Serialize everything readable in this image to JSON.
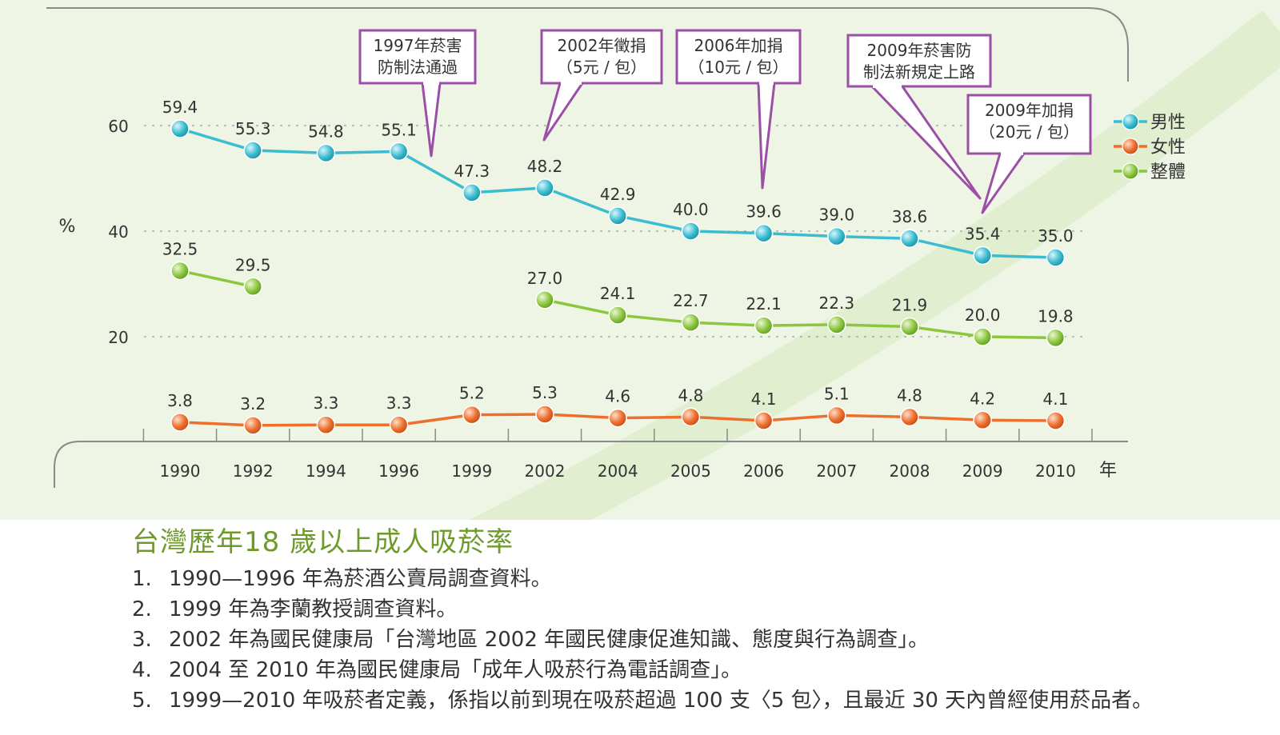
{
  "colors": {
    "panel_bg": "#eef5e4",
    "male": "#3bbcd0",
    "female": "#ee6e2e",
    "overall": "#8cc63f",
    "annotation_border": "#9b4fa6",
    "title": "#6d9a2a",
    "text": "#333333"
  },
  "chart_data": {
    "type": "line",
    "title": "台灣歷年18 歲以上成人吸菸率",
    "ylabel": "%",
    "xlabel": "年",
    "categories": [
      "1990",
      "1992",
      "1994",
      "1996",
      "1999",
      "2002",
      "2004",
      "2005",
      "2006",
      "2007",
      "2008",
      "2009",
      "2010"
    ],
    "yticks": [
      20,
      40,
      60
    ],
    "ylim": [
      0,
      66
    ],
    "grid": "horizontal dotted",
    "legend_position": "right",
    "series": [
      {
        "name": "男性",
        "key": "male",
        "values": [
          59.4,
          55.3,
          54.8,
          55.1,
          47.3,
          48.2,
          42.9,
          40.0,
          39.6,
          39.0,
          38.6,
          35.4,
          35.0
        ],
        "labels": [
          "59.4",
          "55.3",
          "54.8",
          "55.1",
          "47.3",
          "48.2",
          "42.9",
          "40.0",
          "39.6",
          "39.0",
          "38.6",
          "35.4",
          "35.0"
        ]
      },
      {
        "name": "女性",
        "key": "female",
        "values": [
          3.8,
          3.2,
          3.3,
          3.3,
          5.2,
          5.3,
          4.6,
          4.8,
          4.1,
          5.1,
          4.8,
          4.2,
          4.1
        ],
        "labels": [
          "3.8",
          "3.2",
          "3.3",
          "3.3",
          "5.2",
          "5.3",
          "4.6",
          "4.8",
          "4.1",
          "5.1",
          "4.8",
          "4.2",
          "4.1"
        ]
      },
      {
        "name": "整體",
        "key": "overall",
        "values": [
          32.5,
          29.5,
          null,
          null,
          null,
          27.0,
          24.1,
          22.7,
          22.1,
          22.3,
          21.9,
          20.0,
          19.8
        ],
        "labels": [
          "32.5",
          "29.5",
          null,
          null,
          null,
          "27.0",
          "24.1",
          "22.7",
          "22.1",
          "22.3",
          "21.9",
          "20.0",
          "19.8"
        ]
      }
    ],
    "annotations": [
      {
        "lines": [
          "1997年菸害",
          "防制法通過"
        ],
        "target_year": "1997",
        "target_value": 50.5
      },
      {
        "lines": [
          "2002年徵捐",
          "（5元 / 包）"
        ],
        "target_year": "2002",
        "target_value": 48.2
      },
      {
        "lines": [
          "2006年加捐",
          "（10元 / 包）"
        ],
        "target_year": "2006",
        "target_value": 39.6
      },
      {
        "lines": [
          "2009年菸害防",
          "制法新規定上路"
        ],
        "target_year": "2009",
        "target_value": 35.4
      },
      {
        "lines": [
          "2009年加捐",
          "（20元 / 包）"
        ],
        "target_year": "2009",
        "target_value": 35.4
      }
    ]
  },
  "caption": {
    "title": "台灣歷年18 歲以上成人吸菸率",
    "notes": [
      {
        "num": "1.",
        "text": "1990—1996 年為菸酒公賣局調查資料。"
      },
      {
        "num": "2.",
        "text": "1999 年為李蘭教授調查資料。"
      },
      {
        "num": "3.",
        "text": "2002 年為國民健康局「台灣地區 2002 年國民健康促進知識、態度與行為調查」。"
      },
      {
        "num": "4.",
        "text": "2004 至 2010 年為國民健康局「成年人吸菸行為電話調查」。"
      },
      {
        "num": "5.",
        "text": "1999—2010 年吸菸者定義，係指以前到現在吸菸超過 100 支〈5 包〉，且最近 30 天內曾經使用菸品者。"
      }
    ]
  }
}
